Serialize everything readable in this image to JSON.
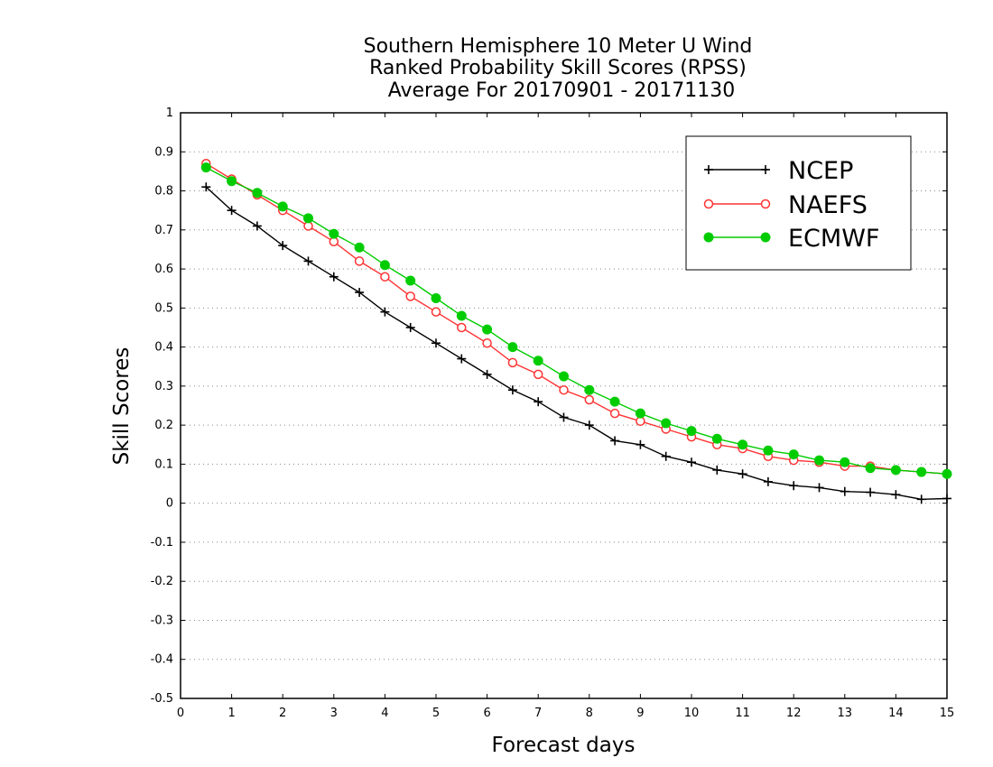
{
  "chart_data": {
    "type": "line",
    "title_lines": [
      "Southern Hemisphere 10 Meter U Wind",
      "Ranked Probability Skill Scores (RPSS)",
      "Average For 20170901 - 20171130"
    ],
    "xlabel": "Forecast days",
    "ylabel": "Skill Scores",
    "xlim": [
      0,
      15
    ],
    "ylim": [
      -0.5,
      1
    ],
    "xticks": [
      "0",
      "1",
      "2",
      "3",
      "4",
      "5",
      "6",
      "7",
      "8",
      "9",
      "10",
      "11",
      "12",
      "13",
      "14",
      "15"
    ],
    "yticks": [
      "-0.5",
      "-0.4",
      "-0.3",
      "-0.2",
      "-0.1",
      "0",
      "0.1",
      "0.2",
      "0.3",
      "0.4",
      "0.5",
      "0.6",
      "0.7",
      "0.8",
      "0.9",
      "1"
    ],
    "grid": "horizontal dotted",
    "legend_position": "top-right",
    "x": [
      0.5,
      1,
      1.5,
      2,
      2.5,
      3,
      3.5,
      4,
      4.5,
      5,
      5.5,
      6,
      6.5,
      7,
      7.5,
      8,
      8.5,
      9,
      9.5,
      10,
      10.5,
      11,
      11.5,
      12,
      12.5,
      13,
      13.5,
      14,
      14.5,
      15
    ],
    "series": [
      {
        "name": "NCEP",
        "color": "#000000",
        "marker": "plus",
        "values": [
          0.81,
          0.75,
          0.71,
          0.66,
          0.62,
          0.58,
          0.54,
          0.49,
          0.45,
          0.41,
          0.37,
          0.33,
          0.29,
          0.26,
          0.22,
          0.2,
          0.16,
          0.15,
          0.12,
          0.105,
          0.085,
          0.075,
          0.055,
          0.045,
          0.04,
          0.03,
          0.028,
          0.022,
          0.01,
          0.012
        ]
      },
      {
        "name": "NAEFS",
        "color": "#ff3333",
        "marker": "open-circle",
        "values": [
          0.87,
          0.83,
          0.79,
          0.75,
          0.71,
          0.67,
          0.62,
          0.58,
          0.53,
          0.49,
          0.45,
          0.41,
          0.36,
          0.33,
          0.29,
          0.265,
          0.23,
          0.21,
          0.19,
          0.17,
          0.15,
          0.14,
          0.12,
          0.11,
          0.105,
          0.095,
          0.095,
          0.085,
          0.08,
          0.075
        ]
      },
      {
        "name": "ECMWF",
        "color": "#00cc00",
        "marker": "filled-circle",
        "values": [
          0.86,
          0.825,
          0.795,
          0.76,
          0.73,
          0.69,
          0.655,
          0.61,
          0.57,
          0.525,
          0.48,
          0.445,
          0.4,
          0.365,
          0.325,
          0.29,
          0.26,
          0.23,
          0.205,
          0.185,
          0.165,
          0.15,
          0.135,
          0.125,
          0.11,
          0.105,
          0.09,
          0.085,
          0.08,
          0.075
        ]
      }
    ]
  }
}
